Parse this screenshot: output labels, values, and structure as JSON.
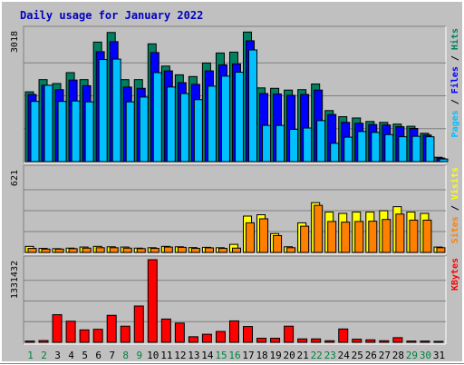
{
  "chart_data": {
    "type": "bar",
    "title": "Daily usage for January 2022",
    "title_color": "#0000c0",
    "background": "#c0c0c0",
    "categories": [
      "1",
      "2",
      "3",
      "4",
      "5",
      "6",
      "7",
      "8",
      "9",
      "10",
      "11",
      "12",
      "13",
      "14",
      "15",
      "16",
      "17",
      "18",
      "19",
      "20",
      "21",
      "22",
      "23",
      "24",
      "25",
      "26",
      "27",
      "28",
      "29",
      "30",
      "31"
    ],
    "weekend_days": [
      "1",
      "2",
      "8",
      "9",
      "15",
      "16",
      "22",
      "23",
      "29",
      "30"
    ],
    "weekend_color": "#008040",
    "weekday_color": "#000000",
    "panels": [
      {
        "id": "hits-files-pages",
        "max_label": "3018",
        "ymax": 3018,
        "legend": [
          {
            "label": "Pages",
            "color": "#00c0ff"
          },
          {
            "label": " / ",
            "color": "#000000"
          },
          {
            "label": "Files",
            "color": "#0000ff"
          },
          {
            "label": " / ",
            "color": "#000000"
          },
          {
            "label": "Hits",
            "color": "#00805c"
          }
        ],
        "series": [
          {
            "name": "Hits",
            "color": "#008060",
            "values": [
              1600,
              1880,
              1790,
              2040,
              1880,
              2740,
              2960,
              1880,
              1880,
              2700,
              2190,
              1990,
              1950,
              2260,
              2490,
              2510,
              2970,
              1690,
              1680,
              1640,
              1650,
              1780,
              1170,
              1030,
              1000,
              920,
              900,
              860,
              810,
              650,
              100
            ]
          },
          {
            "name": "Files",
            "color": "#0000ff",
            "values": [
              1540,
              1750,
              1650,
              1870,
              1740,
              2520,
              2750,
              1710,
              1680,
              2500,
              2080,
              1810,
              1770,
              2080,
              2220,
              2240,
              2770,
              1560,
              1550,
              1520,
              1540,
              1640,
              1080,
              900,
              880,
              850,
              840,
              800,
              760,
              610,
              80
            ]
          },
          {
            "name": "Pages",
            "color": "#00c0ff",
            "values": [
              1380,
              1750,
              1380,
              1390,
              1370,
              2340,
              2350,
              1370,
              1480,
              2040,
              1710,
              1560,
              1420,
              1730,
              1960,
              2050,
              2560,
              830,
              830,
              740,
              770,
              940,
              420,
              560,
              690,
              670,
              620,
              570,
              580,
              570,
              60
            ]
          }
        ]
      },
      {
        "id": "visits-sites",
        "max_label": "621",
        "ymax": 621,
        "legend": [
          {
            "label": "Sites",
            "color": "#ff8000"
          },
          {
            "label": " / ",
            "color": "#000000"
          },
          {
            "label": "Visits",
            "color": "#ffff00"
          }
        ],
        "series": [
          {
            "name": "Visits",
            "color": "#ffff00",
            "values": [
              45,
              30,
              28,
              32,
              40,
              45,
              42,
              40,
              32,
              35,
              45,
              42,
              36,
              38,
              35,
              60,
              270,
              280,
              140,
              42,
              220,
              370,
              300,
              290,
              300,
              300,
              310,
              340,
              300,
              290,
              40
            ]
          },
          {
            "name": "Sites",
            "color": "#ff8000",
            "values": [
              30,
              25,
              25,
              28,
              32,
              35,
              35,
              32,
              28,
              30,
              40,
              38,
              30,
              34,
              30,
              32,
              220,
              250,
              125,
              35,
              195,
              350,
              230,
              225,
              230,
              232,
              245,
              285,
              240,
              240,
              35
            ]
          }
        ]
      },
      {
        "id": "kbytes",
        "max_label": "1331432",
        "ymax": 1331432,
        "legend": [
          {
            "label": "KBytes",
            "color": "#ff0000"
          }
        ],
        "series": [
          {
            "name": "KBytes",
            "color": "#ff0000",
            "values": [
              20000,
              28000,
              445000,
              340000,
              200000,
              210000,
              435000,
              260000,
              585000,
              1331432,
              375000,
              310000,
              90000,
              130000,
              175000,
              345000,
              255000,
              65000,
              65000,
              260000,
              55000,
              55000,
              25000,
              215000,
              50000,
              40000,
              25000,
              75000,
              20000,
              20000,
              15000
            ]
          }
        ]
      }
    ]
  }
}
